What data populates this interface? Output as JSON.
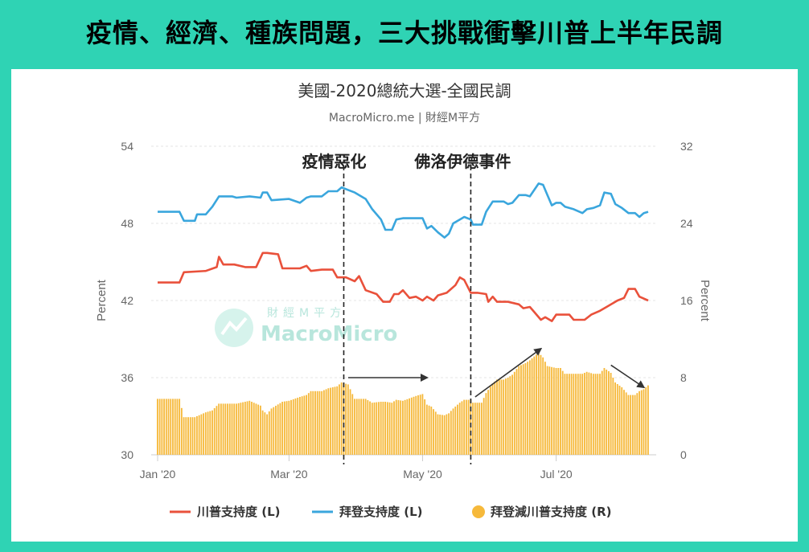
{
  "banner": {
    "title": "疫情、經濟、種族問題，三大挑戰衝擊川普上半年民調"
  },
  "watermark": {
    "cn": "財經M平方",
    "en": "MacroMicro"
  },
  "colors": {
    "trump": "#e9513b",
    "biden": "#3aa6dd",
    "diff": "#f6b93b",
    "frame": "#2fd3b4"
  },
  "chart_data": {
    "type": "line+bar",
    "title": "美國-2020總統大選-全國民調",
    "subtitle": "MacroMicro.me | 財經M平方",
    "x_ticks": [
      {
        "label": "Jan '20",
        "day": 0
      },
      {
        "label": "Mar '20",
        "day": 60
      },
      {
        "label": "May '20",
        "day": 121
      },
      {
        "label": "Jul '20",
        "day": 182
      }
    ],
    "x_range": [
      0,
      224
    ],
    "y_left": {
      "label": "Percent",
      "ticks": [
        30,
        36,
        42,
        48,
        54
      ],
      "range": [
        30,
        54
      ]
    },
    "y_right": {
      "label": "Percent",
      "ticks": [
        0,
        8,
        16,
        24,
        32
      ],
      "range": [
        0,
        32
      ]
    },
    "annotations": [
      {
        "text": "疫情惡化",
        "day": 85
      },
      {
        "text": "佛洛伊德事件",
        "day": 143
      }
    ],
    "legend": [
      {
        "name": "川普支持度 (L)",
        "type": "line",
        "color": "#e9513b"
      },
      {
        "name": "拜登支持度 (L)",
        "type": "line",
        "color": "#3aa6dd"
      },
      {
        "name": "拜登減川普支持度 (R)",
        "type": "bar",
        "color": "#f6b93b"
      }
    ],
    "series": [
      {
        "name": "川普支持度 (L)",
        "axis": "left",
        "points": [
          [
            0,
            43.4
          ],
          [
            10,
            43.4
          ],
          [
            12,
            44.2
          ],
          [
            22,
            44.3
          ],
          [
            27,
            44.6
          ],
          [
            28,
            45.4
          ],
          [
            30,
            44.8
          ],
          [
            35,
            44.8
          ],
          [
            40,
            44.6
          ],
          [
            45,
            44.6
          ],
          [
            48,
            45.7
          ],
          [
            50,
            45.7
          ],
          [
            55,
            45.6
          ],
          [
            57,
            44.5
          ],
          [
            65,
            44.5
          ],
          [
            68,
            44.7
          ],
          [
            70,
            44.3
          ],
          [
            75,
            44.4
          ],
          [
            80,
            44.4
          ],
          [
            82,
            43.8
          ],
          [
            86,
            43.8
          ],
          [
            90,
            43.5
          ],
          [
            92,
            43.9
          ],
          [
            95,
            42.8
          ],
          [
            100,
            42.5
          ],
          [
            103,
            41.9
          ],
          [
            106,
            41.9
          ],
          [
            108,
            42.5
          ],
          [
            110,
            42.5
          ],
          [
            112,
            42.8
          ],
          [
            115,
            42.2
          ],
          [
            118,
            42.3
          ],
          [
            121,
            42.0
          ],
          [
            123,
            42.3
          ],
          [
            126,
            42.0
          ],
          [
            128,
            42.4
          ],
          [
            132,
            42.6
          ],
          [
            136,
            43.2
          ],
          [
            138,
            43.8
          ],
          [
            140,
            43.6
          ],
          [
            143,
            42.6
          ],
          [
            146,
            42.6
          ],
          [
            150,
            42.5
          ],
          [
            151,
            41.9
          ],
          [
            153,
            42.3
          ],
          [
            155,
            41.9
          ],
          [
            160,
            41.9
          ],
          [
            165,
            41.7
          ],
          [
            167,
            41.4
          ],
          [
            170,
            41.5
          ],
          [
            172,
            41.1
          ],
          [
            175,
            40.5
          ],
          [
            177,
            40.7
          ],
          [
            180,
            40.4
          ],
          [
            182,
            40.9
          ],
          [
            185,
            40.9
          ],
          [
            188,
            40.9
          ],
          [
            190,
            40.5
          ],
          [
            195,
            40.5
          ],
          [
            198,
            40.9
          ],
          [
            202,
            41.2
          ],
          [
            205,
            41.5
          ],
          [
            208,
            41.8
          ],
          [
            210,
            42.0
          ],
          [
            213,
            42.2
          ],
          [
            215,
            42.9
          ],
          [
            218,
            42.9
          ],
          [
            220,
            42.3
          ],
          [
            224,
            42.0
          ]
        ]
      },
      {
        "name": "拜登支持度 (L)",
        "axis": "left",
        "points": [
          [
            0,
            48.9
          ],
          [
            10,
            48.9
          ],
          [
            12,
            48.2
          ],
          [
            17,
            48.2
          ],
          [
            18,
            48.7
          ],
          [
            22,
            48.7
          ],
          [
            25,
            49.3
          ],
          [
            28,
            50.1
          ],
          [
            34,
            50.1
          ],
          [
            36,
            50.0
          ],
          [
            42,
            50.1
          ],
          [
            47,
            50.0
          ],
          [
            48,
            50.4
          ],
          [
            50,
            50.4
          ],
          [
            52,
            49.8
          ],
          [
            60,
            49.9
          ],
          [
            65,
            49.6
          ],
          [
            68,
            50.0
          ],
          [
            70,
            50.1
          ],
          [
            75,
            50.1
          ],
          [
            78,
            50.5
          ],
          [
            82,
            50.5
          ],
          [
            84,
            50.8
          ],
          [
            87,
            50.6
          ],
          [
            90,
            50.4
          ],
          [
            95,
            49.9
          ],
          [
            98,
            49.1
          ],
          [
            102,
            48.3
          ],
          [
            104,
            47.5
          ],
          [
            107,
            47.5
          ],
          [
            109,
            48.3
          ],
          [
            112,
            48.4
          ],
          [
            118,
            48.4
          ],
          [
            121,
            48.4
          ],
          [
            123,
            47.6
          ],
          [
            125,
            47.8
          ],
          [
            128,
            47.3
          ],
          [
            131,
            46.9
          ],
          [
            133,
            47.2
          ],
          [
            135,
            48.0
          ],
          [
            138,
            48.3
          ],
          [
            140,
            48.5
          ],
          [
            143,
            48.3
          ],
          [
            144,
            47.9
          ],
          [
            148,
            47.9
          ],
          [
            150,
            48.9
          ],
          [
            153,
            49.7
          ],
          [
            155,
            49.7
          ],
          [
            158,
            49.7
          ],
          [
            160,
            49.5
          ],
          [
            162,
            49.6
          ],
          [
            165,
            50.2
          ],
          [
            168,
            50.2
          ],
          [
            170,
            50.1
          ],
          [
            174,
            51.1
          ],
          [
            176,
            51.0
          ],
          [
            178,
            50.2
          ],
          [
            180,
            49.4
          ],
          [
            182,
            49.6
          ],
          [
            184,
            49.6
          ],
          [
            186,
            49.3
          ],
          [
            190,
            49.1
          ],
          [
            194,
            48.8
          ],
          [
            196,
            49.1
          ],
          [
            199,
            49.2
          ],
          [
            202,
            49.4
          ],
          [
            204,
            50.4
          ],
          [
            207,
            50.3
          ],
          [
            209,
            49.5
          ],
          [
            212,
            49.2
          ],
          [
            215,
            48.8
          ],
          [
            218,
            48.8
          ],
          [
            220,
            48.5
          ],
          [
            222,
            48.8
          ],
          [
            224,
            48.9
          ]
        ]
      },
      {
        "name": "拜登減川普支持度 (R)",
        "axis": "right",
        "points": [
          [
            0,
            5.8
          ],
          [
            10,
            5.8
          ],
          [
            12,
            3.9
          ],
          [
            17,
            3.9
          ],
          [
            18,
            4.0
          ],
          [
            22,
            4.4
          ],
          [
            25,
            4.6
          ],
          [
            28,
            5.3
          ],
          [
            34,
            5.3
          ],
          [
            36,
            5.3
          ],
          [
            42,
            5.6
          ],
          [
            47,
            5.1
          ],
          [
            48,
            4.6
          ],
          [
            50,
            4.2
          ],
          [
            52,
            4.8
          ],
          [
            57,
            5.5
          ],
          [
            60,
            5.6
          ],
          [
            65,
            6.0
          ],
          [
            68,
            6.2
          ],
          [
            70,
            6.6
          ],
          [
            75,
            6.6
          ],
          [
            78,
            6.9
          ],
          [
            82,
            7.1
          ],
          [
            84,
            7.5
          ],
          [
            87,
            7.3
          ],
          [
            90,
            5.8
          ],
          [
            95,
            5.8
          ],
          [
            98,
            5.4
          ],
          [
            102,
            5.5
          ],
          [
            104,
            5.5
          ],
          [
            107,
            5.4
          ],
          [
            109,
            5.7
          ],
          [
            112,
            5.6
          ],
          [
            118,
            6.1
          ],
          [
            121,
            6.3
          ],
          [
            123,
            5.2
          ],
          [
            125,
            5.0
          ],
          [
            128,
            4.2
          ],
          [
            131,
            4.1
          ],
          [
            133,
            4.3
          ],
          [
            135,
            4.8
          ],
          [
            138,
            5.4
          ],
          [
            140,
            5.7
          ],
          [
            143,
            5.7
          ],
          [
            144,
            5.4
          ],
          [
            148,
            5.4
          ],
          [
            150,
            6.4
          ],
          [
            153,
            7.4
          ],
          [
            155,
            7.8
          ],
          [
            158,
            7.8
          ],
          [
            160,
            8.0
          ],
          [
            162,
            8.3
          ],
          [
            165,
            9.2
          ],
          [
            168,
            9.5
          ],
          [
            170,
            9.8
          ],
          [
            174,
            10.6
          ],
          [
            176,
            10.1
          ],
          [
            178,
            9.2
          ],
          [
            180,
            9.1
          ],
          [
            182,
            9.0
          ],
          [
            184,
            9.0
          ],
          [
            186,
            8.4
          ],
          [
            190,
            8.4
          ],
          [
            194,
            8.4
          ],
          [
            196,
            8.6
          ],
          [
            199,
            8.4
          ],
          [
            202,
            8.4
          ],
          [
            204,
            9.0
          ],
          [
            207,
            8.5
          ],
          [
            209,
            7.5
          ],
          [
            212,
            7.0
          ],
          [
            215,
            6.2
          ],
          [
            218,
            6.2
          ],
          [
            220,
            6.6
          ],
          [
            222,
            6.8
          ],
          [
            224,
            7.2
          ]
        ]
      }
    ]
  }
}
